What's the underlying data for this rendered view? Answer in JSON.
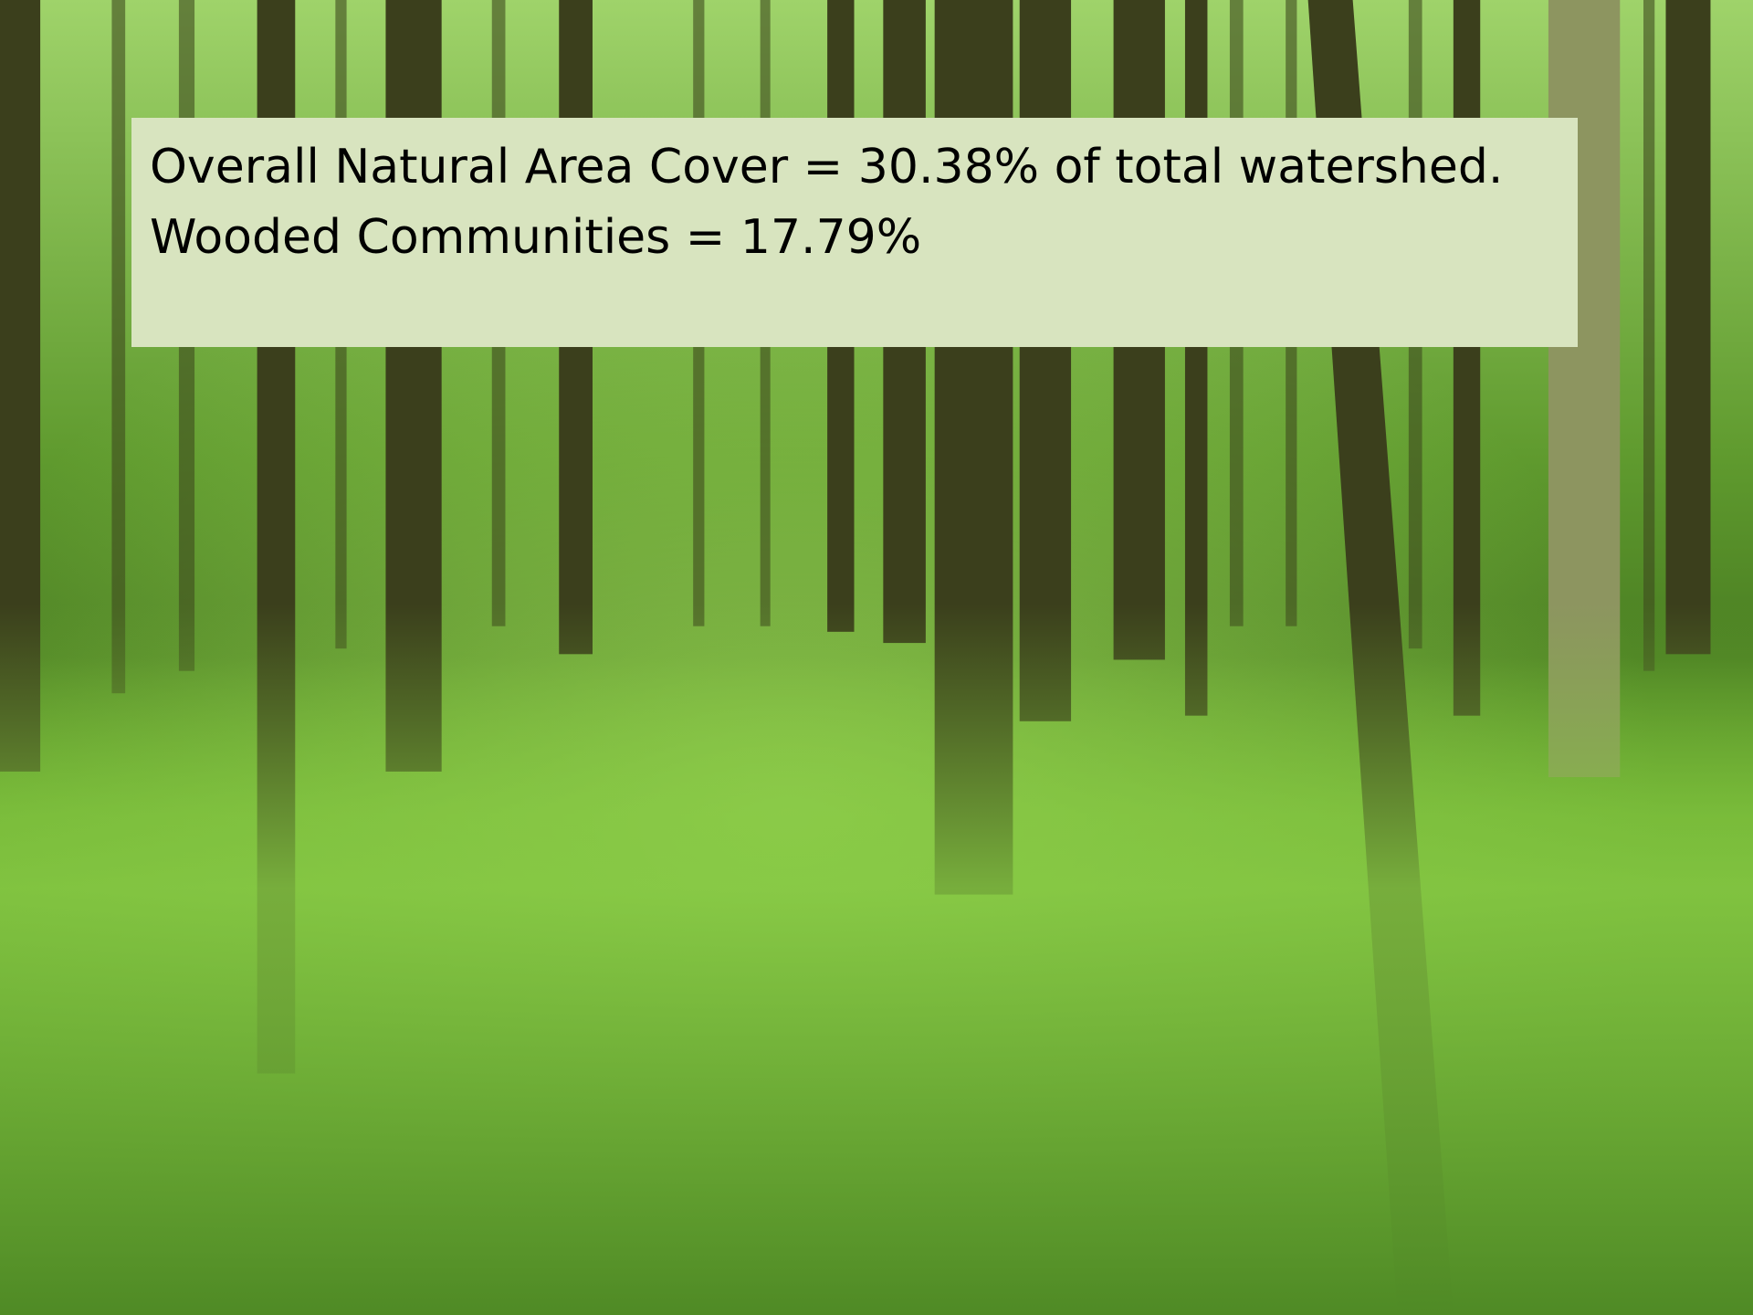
{
  "text_box": {
    "lines": [
      "Overall Natural Area Cover = 30.38% of total watershed.",
      "Wooded Communities = 17.79%"
    ]
  }
}
